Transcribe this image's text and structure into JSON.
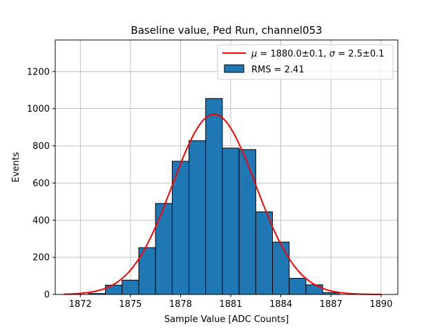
{
  "chart_data": {
    "type": "bar",
    "title": "Baseline value, Ped Run, channel053",
    "xlabel": "Sample Value [ADC Counts]",
    "ylabel": "Events",
    "xlim": [
      1870.5,
      1891.0
    ],
    "ylim": [
      0,
      1370
    ],
    "xticks": [
      1872,
      1875,
      1878,
      1881,
      1884,
      1887,
      1890
    ],
    "yticks": [
      0,
      200,
      400,
      600,
      800,
      1000,
      1200
    ],
    "grid": true,
    "legend_position": "top-right",
    "histogram": {
      "name": "RMS = 2.41",
      "color": "#1f77b4",
      "edge_color": "#000000",
      "bin_edges": [
        1870.5,
        1871.5,
        1872.5,
        1873.5,
        1874.5,
        1875.5,
        1876.5,
        1877.5,
        1878.5,
        1879.5,
        1880.5,
        1881.5,
        1882.5,
        1883.5,
        1884.5,
        1885.5,
        1886.5,
        1887.5,
        1888.5,
        1889.5,
        1890.5
      ],
      "values": [
        0,
        0,
        5,
        50,
        77,
        252,
        490,
        717,
        828,
        1055,
        788,
        780,
        445,
        282,
        87,
        52,
        10,
        0,
        0,
        0
      ]
    },
    "fit": {
      "name_parts": [
        "μ",
        " = 1880.0±0.1, ",
        "σ",
        " = 2.5±0.1"
      ],
      "color": "#ff0000",
      "type": "gaussian",
      "mu": 1880.0,
      "sigma": 2.5,
      "amplitude": 970,
      "x_range": [
        1871.0,
        1890.0
      ]
    }
  }
}
